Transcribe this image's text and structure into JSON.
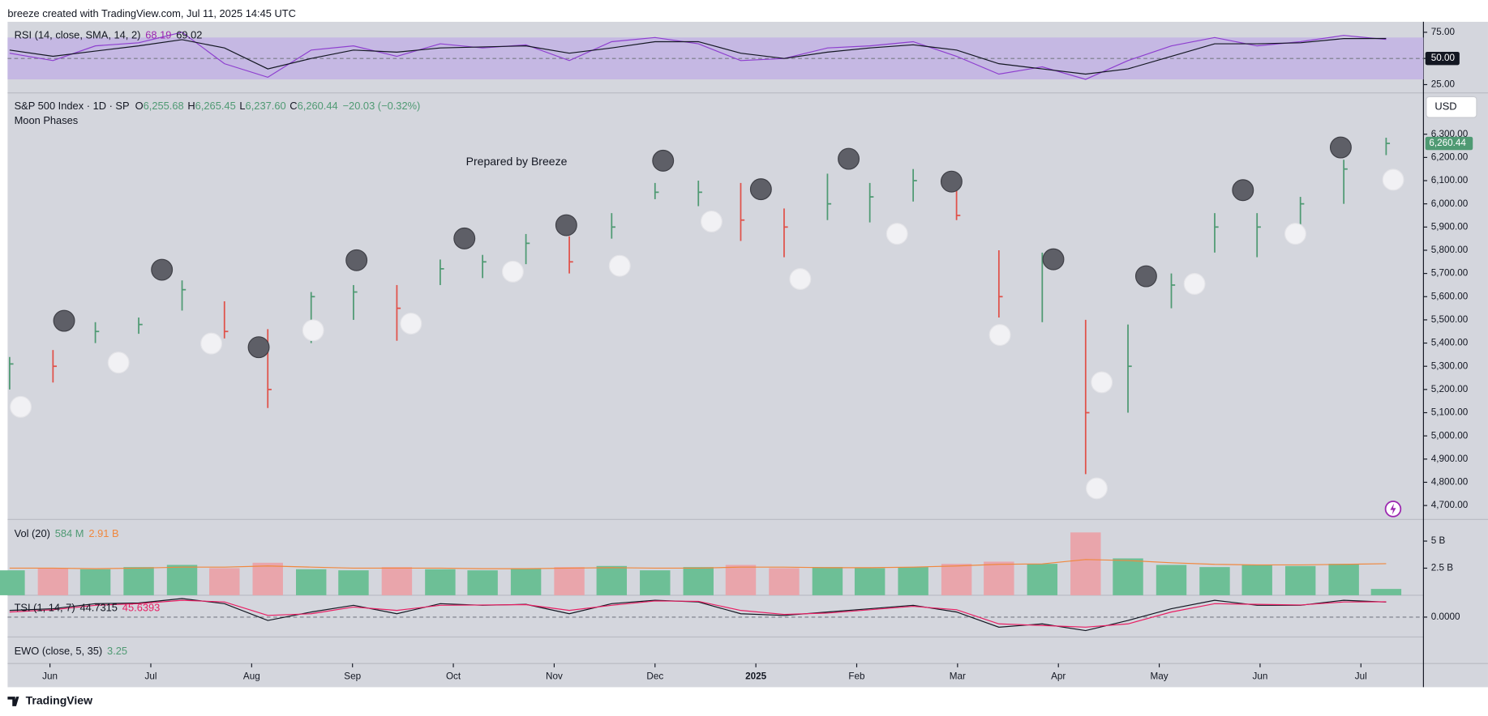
{
  "header": {
    "text": "breeze created with TradingView.com, Jul 11, 2025 14:45 UTC"
  },
  "footer": {
    "brand": "TradingView"
  },
  "chart_data": [
    {
      "type": "rsi",
      "legend": "RSI (14, close, SMA, 14, 2)",
      "series": [
        {
          "color": "#8e3fcf",
          "values": [
            55,
            48,
            62,
            65,
            75,
            45,
            32,
            58,
            62,
            52,
            64,
            60,
            63,
            48,
            66,
            70,
            64,
            48,
            50,
            60,
            62,
            66,
            52,
            35,
            42,
            30,
            48,
            62,
            70,
            62,
            66,
            72,
            68.19
          ],
          "last_label": "68.19"
        },
        {
          "color": "#131722",
          "values": [
            58,
            52,
            57,
            62,
            68,
            60,
            40,
            50,
            58,
            56,
            60,
            61,
            62,
            55,
            60,
            66,
            66,
            55,
            50,
            56,
            60,
            63,
            58,
            45,
            40,
            35,
            40,
            52,
            64,
            64,
            65,
            69,
            69.02
          ],
          "last_label": "69.02"
        }
      ],
      "band": [
        30,
        70
      ],
      "band_color": "#c5b8e3",
      "ylim": [
        18,
        85
      ],
      "yticks": [
        {
          "value": 25,
          "label": "25.00"
        },
        {
          "value": 50,
          "label": "50.00"
        },
        {
          "value": 75,
          "label": "75.00"
        }
      ]
    },
    {
      "type": "ohlc",
      "title": "S&P 500 Index · 1D · SP",
      "subtitle": "Moon Phases",
      "annotation": "Prepared by Breeze",
      "currency": "USD",
      "ohlc_legend": [
        {
          "key": "O",
          "label": "6,255.68"
        },
        {
          "key": "H",
          "label": "6,265.45"
        },
        {
          "key": "L",
          "label": "6,237.60"
        },
        {
          "key": "C",
          "label": "6,260.44"
        }
      ],
      "change": "−20.03 (−0.32%)",
      "up_color": "#4f9a73",
      "down_color": "#e0524a",
      "x": [
        5.6,
        6.03,
        6.45,
        6.88,
        7.31,
        7.73,
        8.16,
        8.59,
        9.01,
        9.44,
        9.87,
        10.29,
        10.72,
        11.15,
        11.57,
        12.0,
        12.43,
        12.85,
        13.28,
        13.71,
        14.13,
        14.56,
        14.99,
        15.41,
        15.84,
        16.27,
        16.69,
        17.12,
        17.55,
        17.97,
        18.4,
        18.83,
        19.25
      ],
      "high": [
        5340,
        5370,
        5490,
        5510,
        5670,
        5580,
        5460,
        5620,
        5650,
        5650,
        5760,
        5780,
        5870,
        5860,
        5960,
        6090,
        6100,
        6090,
        5980,
        6130,
        6090,
        6150,
        6110,
        5800,
        5790,
        5500,
        5480,
        5700,
        5960,
        5960,
        6030,
        6190,
        6285
      ],
      "low": [
        5200,
        5230,
        5400,
        5440,
        5540,
        5420,
        5120,
        5400,
        5500,
        5410,
        5650,
        5680,
        5740,
        5700,
        5850,
        6020,
        5990,
        5840,
        5770,
        5930,
        5920,
        6010,
        5930,
        5510,
        5490,
        4835,
        5100,
        5550,
        5790,
        5770,
        5910,
        6000,
        6210
      ],
      "close": [
        5310,
        5300,
        5450,
        5480,
        5630,
        5450,
        5200,
        5600,
        5620,
        5550,
        5720,
        5750,
        5830,
        5750,
        5900,
        6050,
        6050,
        5930,
        5900,
        6000,
        6030,
        6100,
        5950,
        5600,
        5750,
        5100,
        5300,
        5650,
        5900,
        5900,
        6000,
        6150,
        6260.44
      ],
      "last_price": {
        "value": 6260.44,
        "label": "6,260.44"
      },
      "moons": [
        {
          "color": "#f1f1f4",
          "x": [
            5.71,
            6.68,
            7.6,
            8.61,
            9.58,
            10.59,
            11.65,
            12.56,
            13.44,
            14.4,
            15.42,
            16.43,
            16.38,
            17.35,
            18.35,
            19.32
          ],
          "values": [
            5125,
            5316,
            5398,
            5455,
            5484,
            5708,
            5733,
            5924,
            5676,
            5871,
            5435,
            5231,
            4774,
            5655,
            5871,
            6104
          ]
        },
        {
          "color": "#5e5f67",
          "x": [
            6.14,
            7.11,
            8.07,
            9.04,
            10.11,
            11.12,
            12.08,
            13.05,
            13.92,
            14.94,
            15.95,
            16.87,
            17.83,
            18.8
          ],
          "values": [
            5496,
            5716,
            5382,
            5757,
            5851,
            5908,
            6186,
            6063,
            6194,
            6096,
            5761,
            5688,
            6059,
            6243
          ]
        }
      ],
      "xlim": [
        5.58,
        19.62
      ],
      "xticks": [
        {
          "value": 6,
          "label": "Jun"
        },
        {
          "value": 7,
          "label": "Jul"
        },
        {
          "value": 8,
          "label": "Aug"
        },
        {
          "value": 9,
          "label": "Sep"
        },
        {
          "value": 10,
          "label": "Oct"
        },
        {
          "value": 11,
          "label": "Nov"
        },
        {
          "value": 12,
          "label": "Dec"
        },
        {
          "value": 13,
          "label": "2025"
        },
        {
          "value": 14,
          "label": "Feb"
        },
        {
          "value": 15,
          "label": "Mar"
        },
        {
          "value": 16,
          "label": "Apr"
        },
        {
          "value": 17,
          "label": "May"
        },
        {
          "value": 18,
          "label": "Jun"
        },
        {
          "value": 19,
          "label": "Jul"
        }
      ],
      "ylim": [
        4640,
        6470
      ],
      "yticks": [
        {
          "value": 4700,
          "label": "4,700.00"
        },
        {
          "value": 4800,
          "label": "4,800.00"
        },
        {
          "value": 4900,
          "label": "4,900.00"
        },
        {
          "value": 5000,
          "label": "5,000.00"
        },
        {
          "value": 5100,
          "label": "5,100.00"
        },
        {
          "value": 5200,
          "label": "5,200.00"
        },
        {
          "value": 5300,
          "label": "5,300.00"
        },
        {
          "value": 5400,
          "label": "5,400.00"
        },
        {
          "value": 5500,
          "label": "5,500.00"
        },
        {
          "value": 5600,
          "label": "5,600.00"
        },
        {
          "value": 5700,
          "label": "5,700.00"
        },
        {
          "value": 5800,
          "label": "5,800.00"
        },
        {
          "value": 5900,
          "label": "5,900.00"
        },
        {
          "value": 6000,
          "label": "6,000.00"
        },
        {
          "value": 6100,
          "label": "6,100.00"
        },
        {
          "value": 6200,
          "label": "6,200.00"
        },
        {
          "value": 6300,
          "label": "6,300.00"
        }
      ]
    },
    {
      "type": "volume",
      "legend": "Vol (20)",
      "values": [
        2.3,
        2.5,
        2.4,
        2.6,
        2.8,
        2.5,
        3.0,
        2.4,
        2.3,
        2.6,
        2.4,
        2.3,
        2.5,
        2.6,
        2.7,
        2.3,
        2.6,
        2.8,
        2.5,
        2.6,
        2.5,
        2.6,
        2.9,
        3.1,
        2.9,
        5.8,
        3.4,
        2.8,
        2.6,
        2.8,
        2.7,
        2.9,
        0.584
      ],
      "last_label": "584 M",
      "ma_values": [
        2.5,
        2.5,
        2.45,
        2.5,
        2.6,
        2.6,
        2.7,
        2.6,
        2.5,
        2.5,
        2.5,
        2.45,
        2.45,
        2.5,
        2.55,
        2.5,
        2.5,
        2.6,
        2.6,
        2.55,
        2.55,
        2.6,
        2.7,
        2.85,
        2.9,
        3.3,
        3.2,
        3.0,
        2.85,
        2.8,
        2.8,
        2.85,
        2.91
      ],
      "ma_last_label": "2.91 B",
      "ma_color": "#f0883e",
      "up_color": "#6dbf96",
      "down_color": "#e9a5ab",
      "ylim": [
        0,
        7
      ],
      "yticks": [
        {
          "value": 2.5,
          "label": "2.5 B"
        },
        {
          "value": 5,
          "label": "5 B"
        }
      ]
    },
    {
      "type": "tsi",
      "legend": "TSI (1, 14, 7)",
      "series": [
        {
          "color": "#131722",
          "values": [
            20,
            25,
            40,
            42,
            55,
            40,
            -10,
            15,
            35,
            10,
            40,
            35,
            38,
            10,
            40,
            50,
            45,
            10,
            5,
            15,
            25,
            35,
            15,
            -30,
            -20,
            -40,
            -10,
            25,
            50,
            35,
            35,
            50,
            44.7315
          ],
          "last_label": "44.7315"
        },
        {
          "color": "#e91e63",
          "values": [
            15,
            22,
            35,
            40,
            50,
            45,
            5,
            10,
            30,
            20,
            35,
            36,
            37,
            20,
            35,
            48,
            47,
            20,
            8,
            12,
            22,
            32,
            22,
            -20,
            -25,
            -30,
            -20,
            15,
            40,
            38,
            36,
            45,
            45.6393
          ],
          "last_label": "45.6393"
        }
      ],
      "ylim": [
        -59,
        65
      ],
      "yticks": [
        {
          "value": 0,
          "label": "0.0000"
        }
      ]
    },
    {
      "type": "ewo",
      "legend": "EWO (close, 5, 35)",
      "last_label": "3.25"
    }
  ]
}
